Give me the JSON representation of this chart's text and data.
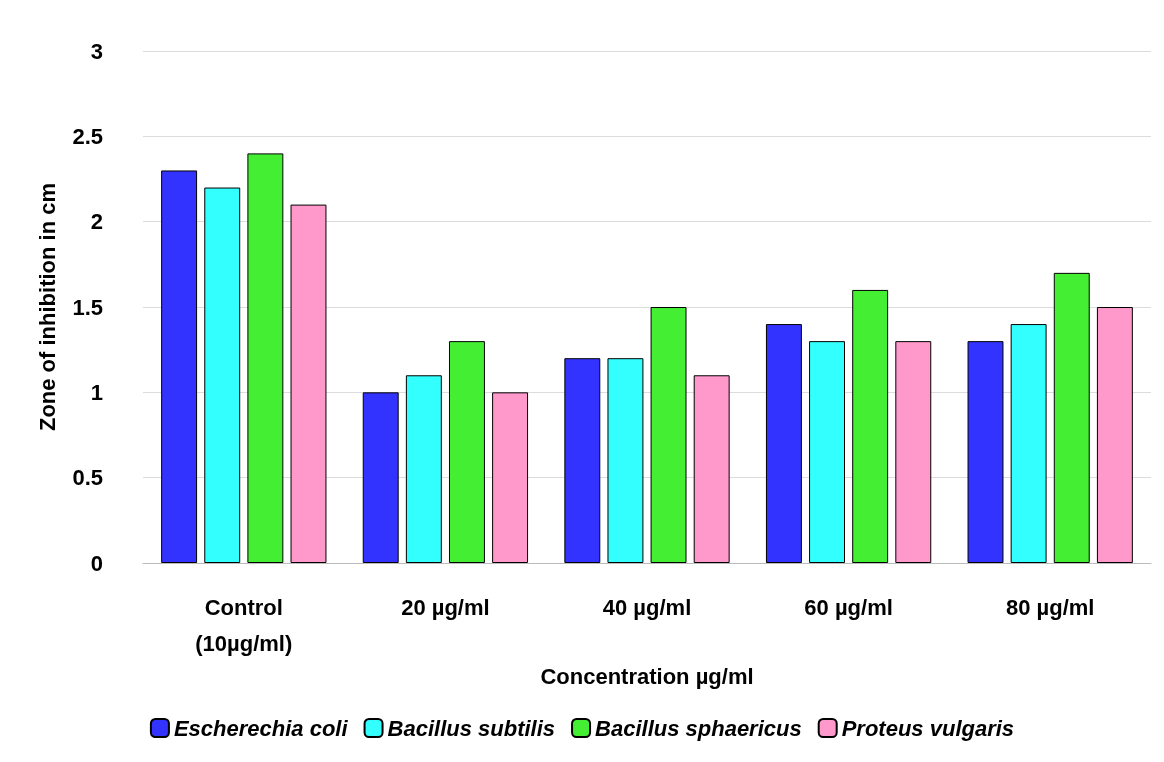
{
  "chart_data": {
    "type": "bar",
    "xlabel": "Concentration µg/ml",
    "ylabel": "Zone of inhibition in cm",
    "categories": [
      "Control\n(10µg/ml)",
      "20 µg/ml",
      "40 µg/ml",
      "60 µg/ml",
      "80 µg/ml"
    ],
    "series": [
      {
        "name": "Escherechia coli",
        "color": "#3333ff",
        "values": [
          2.3,
          1.0,
          1.2,
          1.4,
          1.3
        ]
      },
      {
        "name": "Bacillus subtilis",
        "color": "#33ffff",
        "values": [
          2.2,
          1.1,
          1.2,
          1.3,
          1.4
        ]
      },
      {
        "name": "Bacillus sphaericus",
        "color": "#44ee33",
        "values": [
          2.4,
          1.3,
          1.5,
          1.6,
          1.7
        ]
      },
      {
        "name": "Proteus vulgaris",
        "color": "#ff99cc",
        "values": [
          2.1,
          1.0,
          1.1,
          1.3,
          1.5
        ]
      }
    ],
    "ylim": [
      0,
      3
    ],
    "yticks": [
      0,
      0.5,
      1,
      1.5,
      2,
      2.5,
      3
    ],
    "grid": "y",
    "legend": "bottom"
  }
}
